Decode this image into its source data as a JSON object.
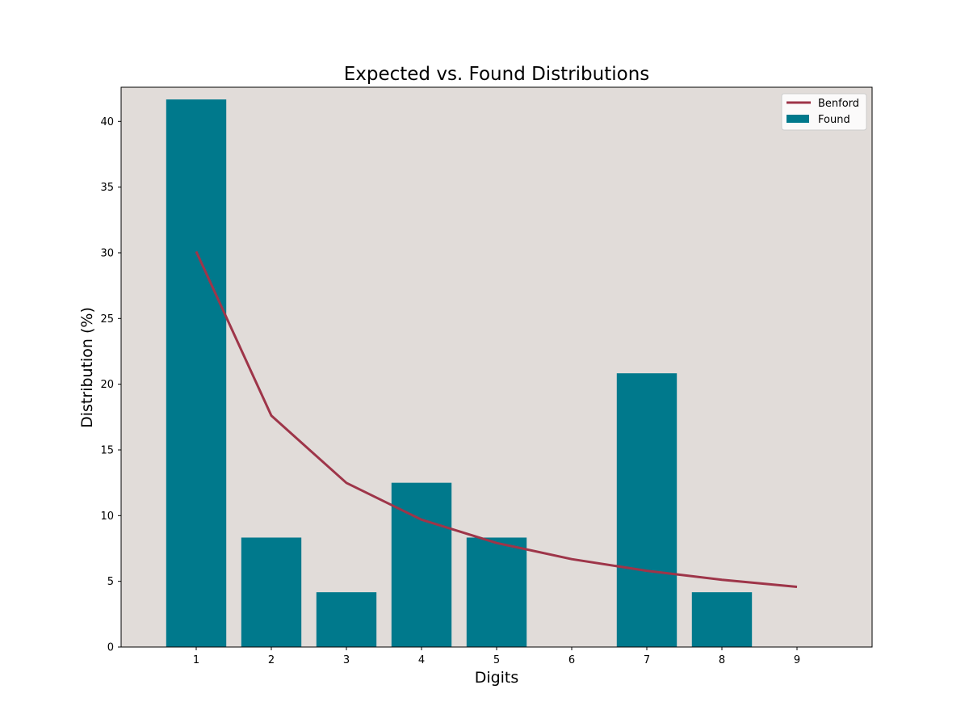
{
  "chart_data": {
    "type": "bar",
    "title": "Expected vs. Found Distributions",
    "xlabel": "Digits",
    "ylabel": "Distribution (%)",
    "categories": [
      "1",
      "2",
      "3",
      "4",
      "5",
      "6",
      "7",
      "8",
      "9"
    ],
    "x": [
      1,
      2,
      3,
      4,
      5,
      6,
      7,
      8,
      9
    ],
    "series": [
      {
        "name": "Found",
        "kind": "bar",
        "color": "#00798c",
        "values": [
          41.67,
          8.33,
          4.17,
          12.5,
          8.33,
          0,
          20.83,
          4.17,
          0
        ]
      },
      {
        "name": "Benford",
        "kind": "line",
        "color": "#9e3549",
        "values": [
          30.1,
          17.61,
          12.49,
          9.69,
          7.92,
          6.69,
          5.8,
          5.12,
          4.58
        ]
      }
    ],
    "xlim": [
      0,
      10
    ],
    "ylim": [
      0,
      42.6
    ],
    "yticks": [
      0,
      5,
      10,
      15,
      20,
      25,
      30,
      35,
      40
    ],
    "grid": false,
    "legend": {
      "placement": "top-right",
      "entries": [
        "Benford",
        "Found"
      ]
    },
    "plot_background": "#e1dcd9"
  }
}
